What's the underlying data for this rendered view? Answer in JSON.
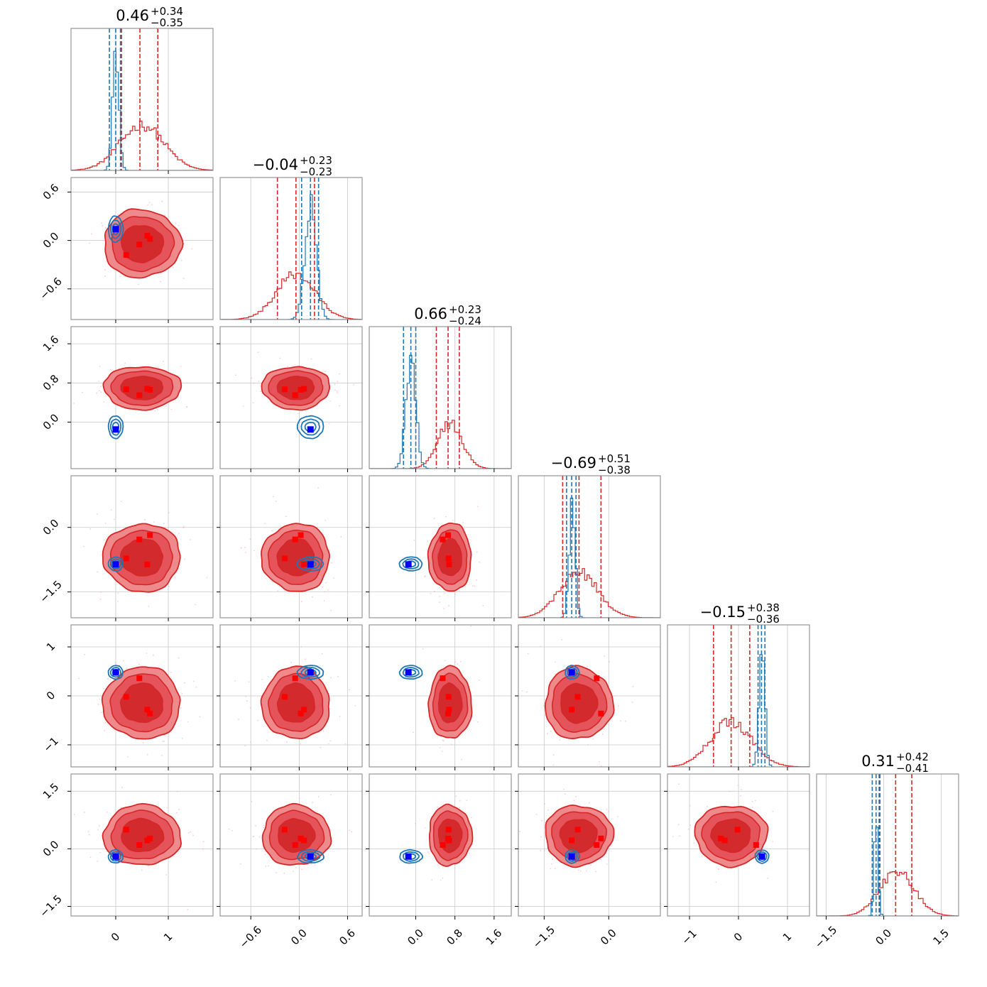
{
  "chart_data": {
    "type": "corner",
    "n_params": 6,
    "colors": {
      "red": "#d62728",
      "red_light": "#ee8a8c",
      "red_mid": "#e4545a",
      "red_dark": "#d32a2d",
      "blue": "#1f77b4",
      "blue_marker": "#0000ff",
      "red_marker": "#ff0000",
      "grid": "#c8c8c8",
      "frame": "#808080"
    },
    "titles": [
      {
        "main": "0.46",
        "plus": "+0.34",
        "minus": "−0.35"
      },
      {
        "main": "−0.04",
        "plus": "+0.23",
        "minus": "−0.23"
      },
      {
        "main": "0.66",
        "plus": "+0.23",
        "minus": "−0.24"
      },
      {
        "main": "−0.69",
        "plus": "+0.51",
        "minus": "−0.38"
      },
      {
        "main": "−0.15",
        "plus": "+0.38",
        "minus": "−0.36"
      },
      {
        "main": "0.31",
        "plus": "+0.42",
        "minus": "−0.41"
      }
    ],
    "params": [
      {
        "range": [
          -0.85,
          1.85
        ],
        "ticks": [
          0,
          1
        ],
        "tick_labels": [
          "0",
          "1"
        ],
        "red_center": 0.5,
        "red_sd": 0.42,
        "blue_center": 0.0,
        "blue_sd": 0.06,
        "red_q": [
          0.11,
          0.46,
          0.8
        ],
        "blue_q": [
          -0.12,
          0.0,
          0.09
        ]
      },
      {
        "range": [
          -0.98,
          0.78
        ],
        "ticks": [
          -0.6,
          0.0,
          0.6
        ],
        "tick_labels": [
          "−0.6",
          "0.0",
          "0.6"
        ],
        "red_center": -0.04,
        "red_sd": 0.24,
        "blue_center": 0.14,
        "blue_sd": 0.07,
        "red_q": [
          -0.27,
          -0.04,
          0.19
        ],
        "blue_q": [
          0.03,
          0.14,
          0.24
        ]
      },
      {
        "range": [
          -0.95,
          1.95
        ],
        "ticks": [
          0.0,
          0.8,
          1.6
        ],
        "tick_labels": [
          "0.0",
          "0.8",
          "1.6"
        ],
        "red_center": 0.7,
        "red_sd": 0.25,
        "blue_center": -0.1,
        "blue_sd": 0.1,
        "red_q": [
          0.42,
          0.66,
          0.89
        ],
        "blue_q": [
          -0.25,
          -0.1,
          0.0
        ]
      },
      {
        "range": [
          -2.1,
          1.2
        ],
        "ticks": [
          -1.5,
          0.0
        ],
        "tick_labels": [
          "−1.5",
          "0.0"
        ],
        "red_center": -0.7,
        "red_sd": 0.45,
        "blue_center": -0.85,
        "blue_sd": 0.07,
        "red_q": [
          -1.07,
          -0.69,
          -0.18
        ],
        "blue_q": [
          -0.98,
          -0.86,
          -0.76
        ]
      },
      {
        "range": [
          -1.45,
          1.45
        ],
        "ticks": [
          -1,
          0,
          1
        ],
        "tick_labels": [
          "−1",
          "0",
          "1"
        ],
        "red_center": -0.15,
        "red_sd": 0.42,
        "blue_center": 0.48,
        "blue_sd": 0.06,
        "red_q": [
          -0.51,
          -0.15,
          0.23
        ],
        "blue_q": [
          0.4,
          0.47,
          0.54
        ]
      },
      {
        "range": [
          -1.75,
          1.95
        ],
        "ticks": [
          -1.5,
          0.0,
          1.5
        ],
        "tick_labels": [
          "−1.5",
          "0.0",
          "1.5"
        ],
        "red_center": 0.35,
        "red_sd": 0.45,
        "blue_center": -0.2,
        "blue_sd": 0.05,
        "red_q": [
          -0.1,
          0.31,
          0.73
        ],
        "blue_q": [
          -0.3,
          -0.2,
          -0.12
        ]
      }
    ],
    "markers": {
      "blue": [
        0.0,
        0.14,
        -0.15,
        -0.86,
        0.48,
        -0.2
      ],
      "red_runs": [
        [
          0.2,
          -0.18,
          0.67,
          -0.72,
          -0.02,
          0.5
        ],
        [
          0.45,
          -0.05,
          0.55,
          -0.28,
          0.36,
          0.1
        ],
        [
          0.6,
          0.06,
          0.68,
          -0.86,
          -0.28,
          0.22
        ],
        [
          0.65,
          0.02,
          0.66,
          -0.18,
          -0.36,
          0.27
        ]
      ]
    }
  }
}
